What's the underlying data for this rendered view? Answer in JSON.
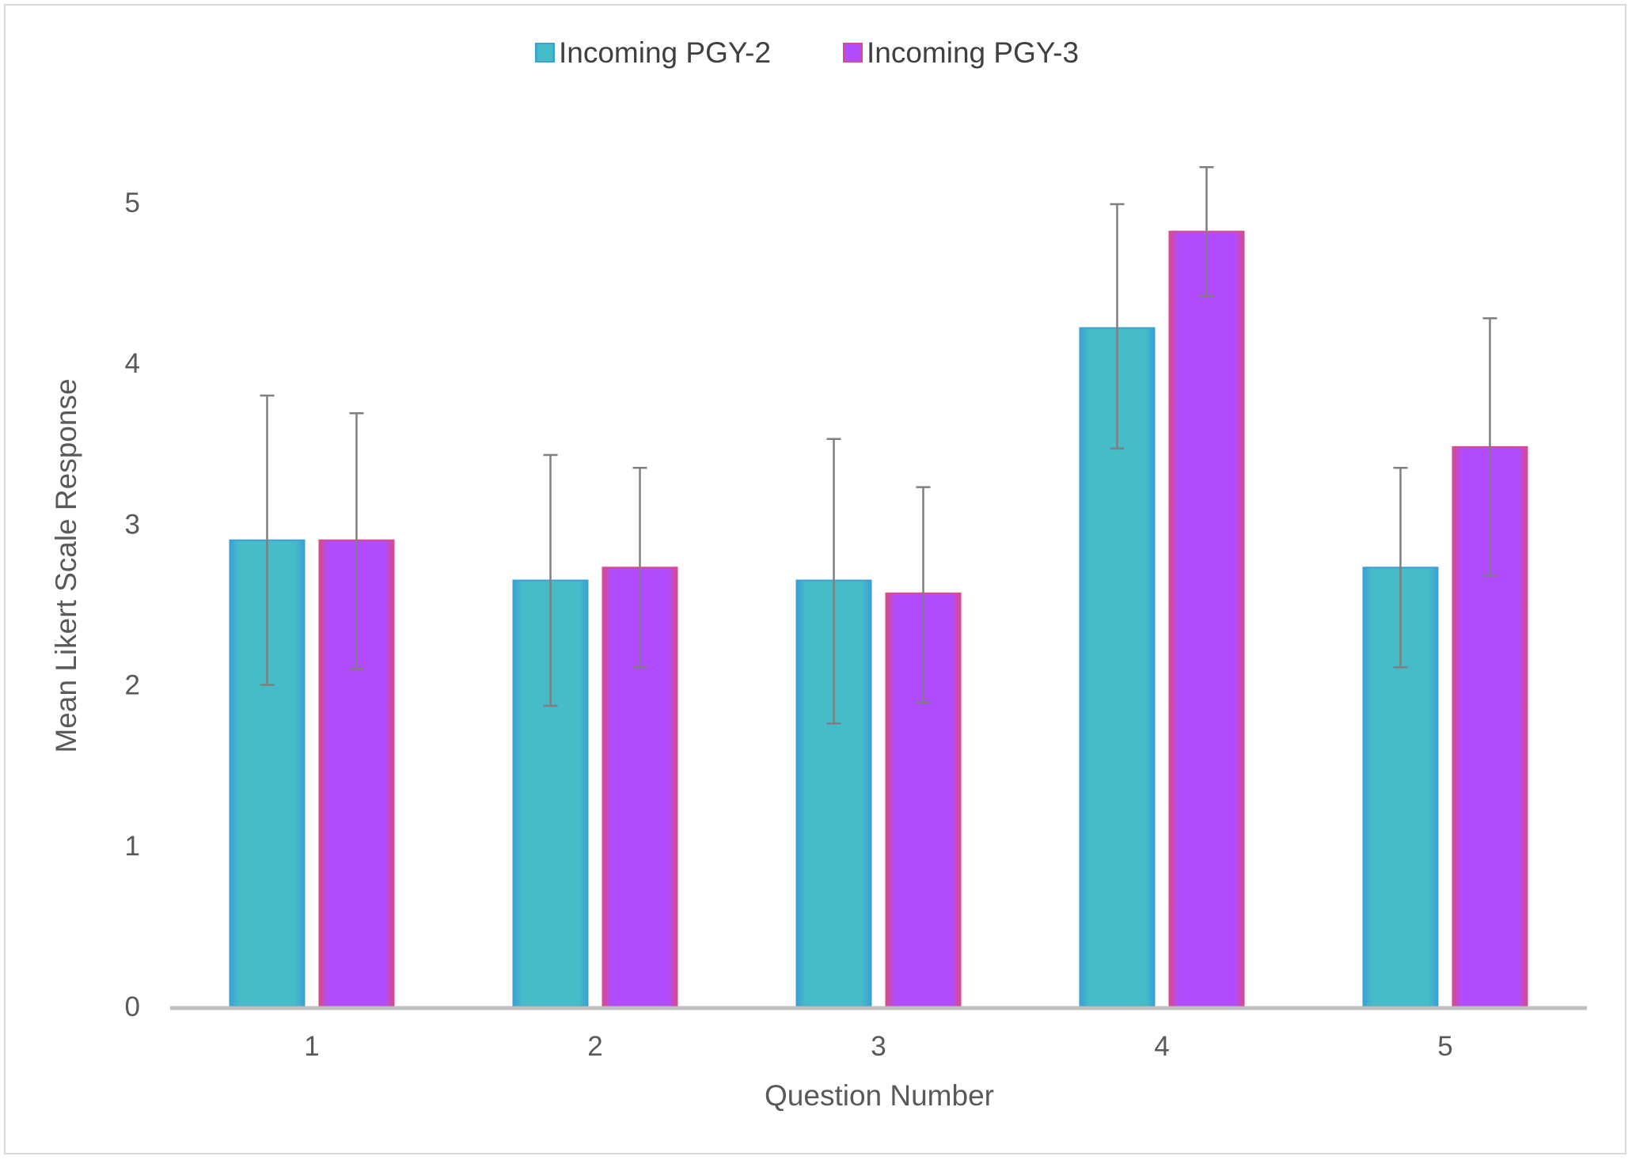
{
  "chart_data": {
    "type": "bar",
    "title": "",
    "xlabel": "Question Number",
    "ylabel": "Mean Likert Scale Response",
    "categories": [
      "1",
      "2",
      "3",
      "4",
      "5"
    ],
    "ylim": [
      0,
      5
    ],
    "yticks": [
      0,
      1,
      2,
      3,
      4,
      5
    ],
    "grid": false,
    "legend_position": "top-center",
    "error_bars": true,
    "series": [
      {
        "name": "Incoming PGY-2",
        "values": [
          2.9,
          2.65,
          2.65,
          4.22,
          2.73
        ],
        "err_low": [
          2.0,
          1.87,
          1.76,
          3.47,
          2.11
        ],
        "err_high": [
          3.8,
          3.43,
          3.53,
          4.99,
          3.35
        ],
        "color_main": "#45bcc7",
        "color_edge": "#3aa0d6"
      },
      {
        "name": "Incoming PGY-3",
        "values": [
          2.9,
          2.73,
          2.57,
          4.82,
          3.48
        ],
        "err_low": [
          2.1,
          2.11,
          1.89,
          4.42,
          2.68
        ],
        "err_high": [
          3.69,
          3.35,
          3.23,
          5.22,
          4.28
        ],
        "color_main": "#b24cff",
        "color_edge": "#d84a8c"
      }
    ],
    "colors": {
      "axis": "#bfbfbf",
      "error_bar": "#7f7f7f",
      "text": "#595959"
    }
  }
}
